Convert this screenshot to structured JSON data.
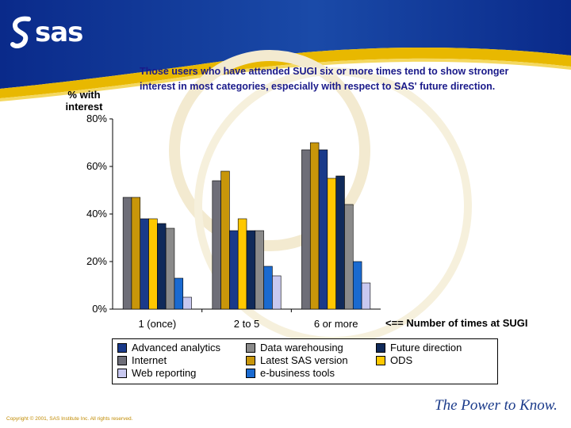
{
  "brand": {
    "logo_text": "sas",
    "tagline": "The Power to Know."
  },
  "headline": {
    "line1": "Those users who have attended SUGI six or more times tend to show stronger",
    "line2": "interest in most categories, especially with respect to SAS' future direction."
  },
  "footer": {
    "copyright": "Copyright © 2001, SAS Institute Inc. All rights reserved."
  },
  "chart_data": {
    "type": "bar",
    "ylabel_line1": "% with",
    "ylabel_line2": "interest",
    "xlabel": "<== Number of times at SUGI",
    "ylim": [
      0,
      80
    ],
    "yticks": [
      "0%",
      "20%",
      "40%",
      "60%",
      "80%"
    ],
    "ytick_values": [
      0,
      20,
      40,
      60,
      80
    ],
    "categories": [
      "1 (once)",
      "2 to 5",
      "6 or more"
    ],
    "series": [
      {
        "name": "Internet",
        "color": "#6e6e78",
        "values": [
          47,
          54,
          67
        ]
      },
      {
        "name": "Latest SAS version",
        "color": "#c8960a",
        "values": [
          47,
          58,
          70
        ]
      },
      {
        "name": "Advanced analytics",
        "color": "#1a3a8a",
        "values": [
          38,
          33,
          67
        ]
      },
      {
        "name": "ODS",
        "color": "#ffc800",
        "values": [
          38,
          38,
          55
        ]
      },
      {
        "name": "Future direction",
        "color": "#102a5a",
        "values": [
          36,
          33,
          56
        ]
      },
      {
        "name": "Data warehousing",
        "color": "#8a8a8a",
        "values": [
          34,
          33,
          44
        ]
      },
      {
        "name": "e-business tools",
        "color": "#1a6ad0",
        "values": [
          13,
          18,
          20
        ]
      },
      {
        "name": "Web reporting",
        "color": "#c8c8f0",
        "values": [
          5,
          14,
          11
        ]
      }
    ],
    "legend_order": [
      [
        "Advanced analytics",
        "Data warehousing",
        "Future direction"
      ],
      [
        "Internet",
        "Latest SAS version",
        "ODS"
      ],
      [
        "Web reporting",
        "e-business tools"
      ]
    ],
    "legend_placement": "bottom",
    "grid": false
  }
}
